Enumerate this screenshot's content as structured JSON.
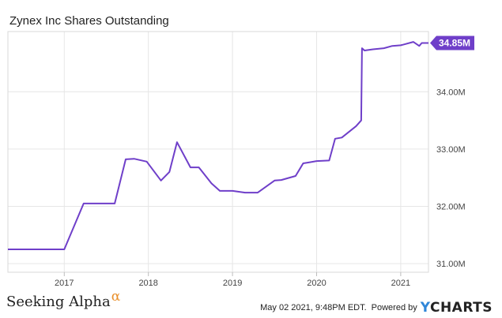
{
  "chart_data": {
    "type": "line",
    "title": "Zynex Inc Shares Outstanding",
    "xlabel": "",
    "ylabel": "",
    "x_ticks": [
      "2017",
      "2018",
      "2019",
      "2020",
      "2021"
    ],
    "y_ticks": [
      "31.00M",
      "32.00M",
      "33.00M",
      "34.00M"
    ],
    "xlim": [
      2016.33,
      2021.33
    ],
    "ylim": [
      30.85,
      35.05
    ],
    "grid": true,
    "series": [
      {
        "color": "#6f3fc9",
        "x": [
          2016.33,
          2016.75,
          2017.0,
          2017.23,
          2017.6,
          2017.73,
          2017.83,
          2017.98,
          2018.15,
          2018.25,
          2018.34,
          2018.5,
          2018.6,
          2018.75,
          2018.85,
          2019.0,
          2019.15,
          2019.3,
          2019.5,
          2019.58,
          2019.75,
          2019.84,
          2019.92,
          2020.0,
          2020.15,
          2020.22,
          2020.3,
          2020.47,
          2020.53,
          2020.54,
          2020.57,
          2020.67,
          2020.8,
          2020.9,
          2021.0,
          2021.15,
          2021.22,
          2021.25,
          2021.33
        ],
        "values": [
          31.25,
          31.25,
          31.25,
          32.05,
          32.05,
          32.82,
          32.83,
          32.78,
          32.45,
          32.6,
          33.12,
          32.68,
          32.68,
          32.4,
          32.27,
          32.27,
          32.24,
          32.24,
          32.45,
          32.46,
          32.53,
          32.75,
          32.77,
          32.79,
          32.8,
          33.18,
          33.2,
          33.4,
          33.5,
          34.76,
          34.72,
          34.74,
          34.76,
          34.8,
          34.81,
          34.87,
          34.8,
          34.85,
          34.85
        ]
      }
    ],
    "last_value_label": "34.85M"
  },
  "footer": {
    "brand_left": "Seeking Alpha",
    "alpha_symbol": "α",
    "timestamp": "May 02 2021, 9:48PM EDT.",
    "powered_by": "Powered by",
    "ycharts_y": "Y",
    "ycharts_rest": "CHARTS"
  }
}
